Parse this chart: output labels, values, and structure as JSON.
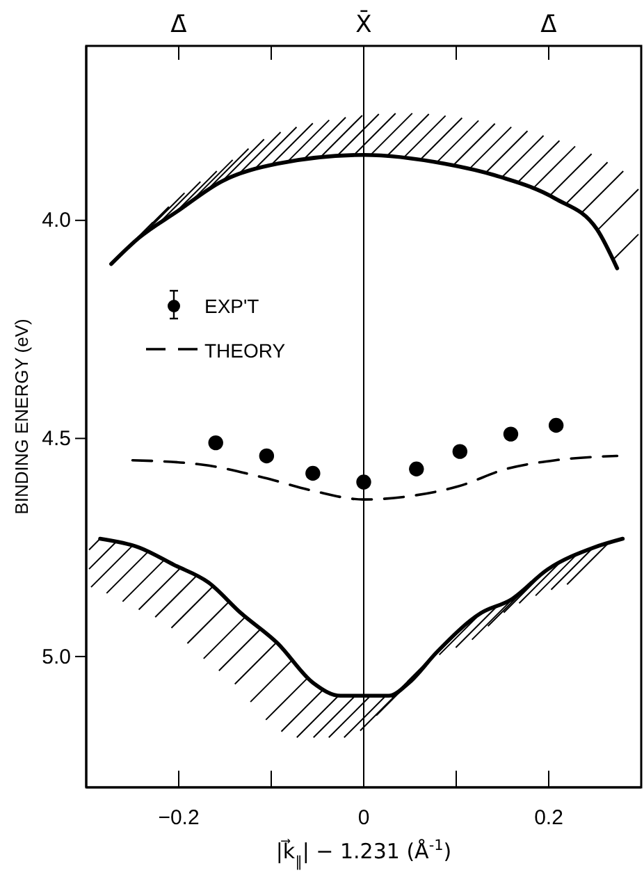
{
  "chart_data": {
    "type": "line",
    "xlabel": "|k⃗$_{∥}$| − 1.231 (Å$^{-1}$)",
    "ylabel": "BINDING ENERGY (eV)",
    "xlim": [
      -0.3,
      0.3
    ],
    "xticks": [
      {
        "value": -0.2,
        "label": "−0.2"
      },
      {
        "value": -0.1,
        "label": null
      },
      0,
      {
        "value": 0.1,
        "label": null
      },
      0.2
    ],
    "ylim": [
      5.3,
      3.6
    ],
    "yticks": [
      {
        "value": 4.0,
        "label": "4.0"
      },
      4.5,
      {
        "value": 5.0,
        "label": "5.0"
      }
    ],
    "grid": false,
    "legend": "top left",
    "annotations": [
      "Δ̄",
      "X̄",
      "Δ̄"
    ],
    "ref_lines": [
      {
        "axis": "x",
        "value": 0,
        "color": "#000000",
        "line_style": "solid"
      }
    ],
    "series": [
      {
        "type": "scatter",
        "name": "EXP'T",
        "color": "#000000",
        "marker": "circle",
        "x": [
          -0.16,
          -0.105,
          -0.055,
          0,
          0.057,
          0.104,
          0.159,
          0.208
        ],
        "values": [
          4.51,
          4.54,
          4.58,
          4.6,
          4.57,
          4.53,
          4.49,
          4.47
        ]
      },
      {
        "name": "THEORY",
        "color": "#000000",
        "line_style": "dashed",
        "marker": "none",
        "x": [
          -0.25,
          -0.175,
          -0.108,
          -0.055,
          0,
          0.057,
          0.102,
          0.154,
          0.207,
          0.274
        ],
        "values": [
          4.55,
          4.56,
          4.59,
          4.62,
          4.64,
          4.63,
          4.61,
          4.57,
          4.55,
          4.54
        ]
      },
      {
        "color": "#000000",
        "line_style": "solid",
        "marker": "none",
        "x": [
          -0.273,
          -0.243,
          -0.202,
          -0.153,
          -0.093,
          0,
          0.087,
          0.147,
          0.207,
          0.252,
          0.274
        ],
        "values": [
          4.1,
          4.04,
          3.98,
          3.91,
          3.87,
          3.85,
          3.87,
          3.9,
          3.95,
          4.02,
          4.11
        ]
      },
      {
        "color": "#000000",
        "line_style": "solid",
        "marker": "none",
        "x": [
          -0.285,
          -0.243,
          -0.205,
          -0.168,
          -0.133,
          -0.093,
          -0.055,
          -0.025,
          0,
          0.027,
          0.049,
          0.079,
          0.127,
          0.159,
          0.199,
          0.249,
          0.28
        ],
        "values": [
          4.73,
          4.75,
          4.79,
          4.83,
          4.9,
          4.97,
          5.06,
          5.09,
          5.09,
          5.09,
          5.06,
          4.99,
          4.9,
          4.87,
          4.8,
          4.75,
          4.73
        ]
      }
    ]
  }
}
